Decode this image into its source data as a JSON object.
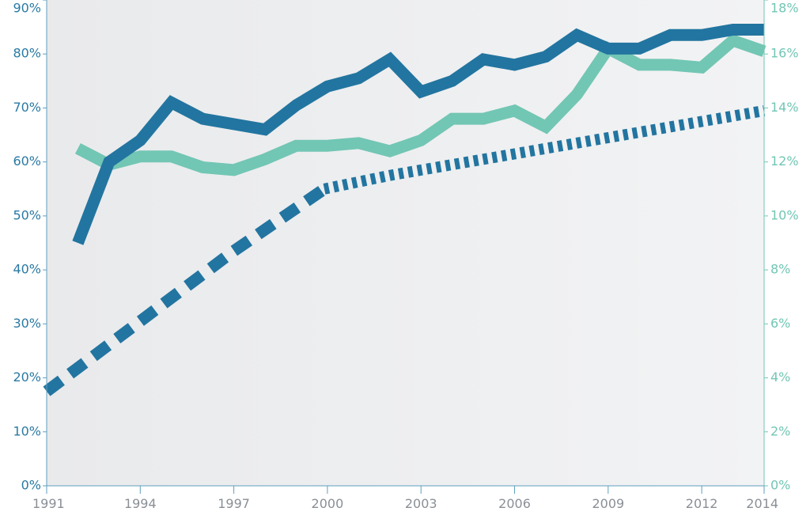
{
  "chart_data": {
    "type": "line",
    "title": "",
    "xlabel": "",
    "ylabel": "",
    "xlim": [
      1991,
      2014
    ],
    "ylim": [
      0,
      90
    ],
    "y2lim": [
      0,
      18
    ],
    "x_ticks": [
      "1991",
      "1994",
      "1997",
      "2000",
      "2003",
      "2006",
      "2009",
      "2012",
      "2014"
    ],
    "x_tick_values": [
      1991,
      1994,
      1997,
      2000,
      2003,
      2006,
      2009,
      2012,
      2014
    ],
    "y_ticks": [
      "0%",
      "10%",
      "20%",
      "30%",
      "40%",
      "50%",
      "60%",
      "70%",
      "80%",
      "90%"
    ],
    "y_tick_values": [
      0,
      10,
      20,
      30,
      40,
      50,
      60,
      70,
      80,
      90
    ],
    "y2_ticks": [
      "0%",
      "2%",
      "4%",
      "6%",
      "8%",
      "10%",
      "12%",
      "14%",
      "16%",
      "18%"
    ],
    "y2_tick_values": [
      0,
      2,
      4,
      6,
      8,
      10,
      12,
      14,
      16,
      18
    ],
    "colors": {
      "dark": "#2275a0",
      "teal": "#72c6b4",
      "left_tick": "#2a7aa2",
      "right_tick": "#72c6b4",
      "x_tick": "#8a8f96",
      "axis": "#5f9fbf",
      "bg_left": "#e9eaec",
      "bg_right": "#f2f3f4"
    },
    "series": [
      {
        "name": "dark-solid",
        "axis": "left",
        "style": "solid",
        "color": "#2275a0",
        "x": [
          1992,
          1993,
          1994,
          1995,
          1996,
          1997,
          1998,
          1999,
          2000,
          2001,
          2002,
          2003,
          2004,
          2005,
          2006,
          2007,
          2008,
          2009,
          2010,
          2011,
          2012,
          2013,
          2014
        ],
        "values": [
          45,
          60,
          64,
          71,
          68,
          67,
          66,
          70.5,
          74,
          75.5,
          79,
          73,
          75,
          79,
          78,
          79.5,
          83.5,
          81,
          81,
          83.5,
          83.5,
          84.5,
          84.5
        ]
      },
      {
        "name": "teal-solid",
        "axis": "right",
        "style": "solid",
        "color": "#72c6b4",
        "x": [
          1992,
          1993,
          1994,
          1995,
          1996,
          1997,
          1998,
          1999,
          2000,
          2001,
          2002,
          2003,
          2004,
          2005,
          2006,
          2007,
          2008,
          2009,
          2010,
          2011,
          2012,
          2013,
          2014
        ],
        "values": [
          12.5,
          11.9,
          12.2,
          12.2,
          11.8,
          11.7,
          12.1,
          12.6,
          12.6,
          12.7,
          12.4,
          12.8,
          13.6,
          13.6,
          13.9,
          13.3,
          14.5,
          16.2,
          15.6,
          15.6,
          15.5,
          16.5,
          16.1
        ]
      },
      {
        "name": "dark-dashed-projection",
        "axis": "left",
        "style": "dashed",
        "color": "#2275a0",
        "x": [
          1991,
          1994,
          1997,
          1999.9
        ],
        "values": [
          17.5,
          30.5,
          43.5,
          55
        ]
      },
      {
        "name": "dark-dotted-projection",
        "axis": "left",
        "style": "dotted",
        "color": "#2275a0",
        "x": [
          1999.9,
          2002,
          2005,
          2008,
          2011,
          2014
        ],
        "values": [
          55,
          57.5,
          60.5,
          63.5,
          66.5,
          69.5
        ]
      }
    ]
  }
}
